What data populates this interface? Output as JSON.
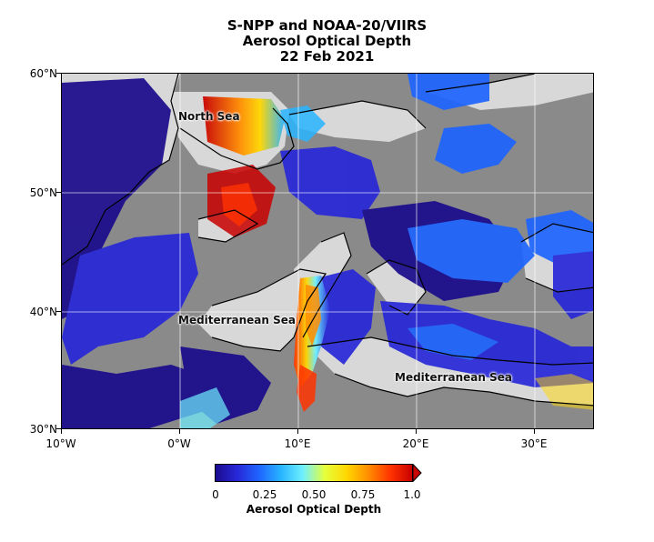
{
  "title": {
    "line1": "S-NPP and NOAA-20/VIIRS",
    "line2": "Aerosol Optical Depth",
    "line3": "22 Feb 2021"
  },
  "map": {
    "extent": {
      "lon_min": -10,
      "lon_max": 35,
      "lat_min": 30,
      "lat_max": 60
    },
    "lat_ticks": [
      "60°N",
      "50°N",
      "40°N",
      "30°N"
    ],
    "lon_ticks": [
      "10°W",
      "0°W",
      "10°E",
      "20°E",
      "30°E"
    ],
    "labels": {
      "north_sea": "North Sea",
      "med_sea_west": "Mediterranean Sea",
      "med_sea_east": "Mediterranean Sea"
    },
    "colors": {
      "land": "#8a8a8a",
      "water": "#d8d8d8",
      "coast": "#000000",
      "grid": "#ffffff"
    }
  },
  "colorbar": {
    "label": "Aerosol Optical Depth",
    "ticks": [
      "0",
      "0.25",
      "0.50",
      "0.75",
      "1.0"
    ],
    "range": [
      0,
      1.0
    ],
    "colormap": [
      "#1a0a8c",
      "#2828d8",
      "#1e64ff",
      "#28b4ff",
      "#6ef0ff",
      "#e6ff3c",
      "#ffd700",
      "#ff8c00",
      "#ff3200",
      "#c80000"
    ],
    "extend": "max"
  }
}
